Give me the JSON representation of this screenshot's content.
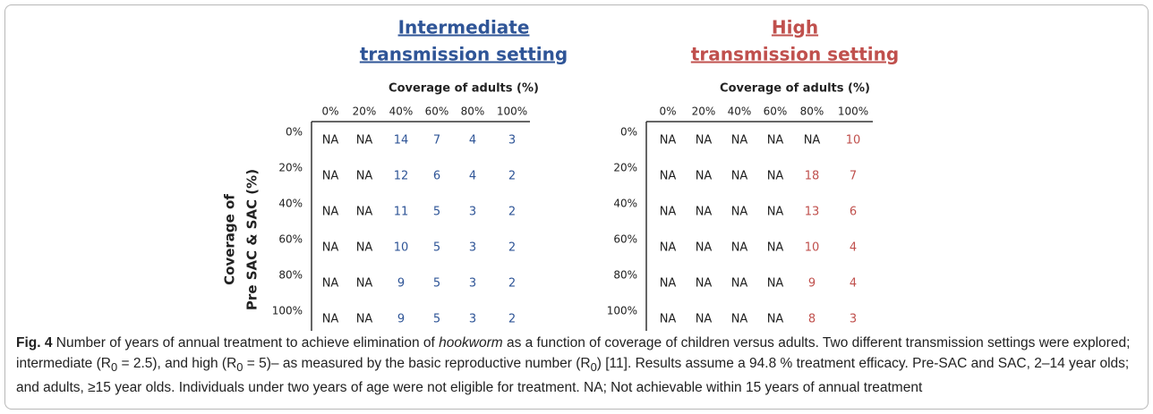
{
  "panels": [
    {
      "title": [
        "Intermediate",
        "transmission setting"
      ],
      "color": "#2f5597",
      "column_header": "Coverage of adults (%)",
      "columns": [
        "0%",
        "20%",
        "40%",
        "60%",
        "80%",
        "100%"
      ],
      "rows": [
        "0%",
        "20%",
        "40%",
        "60%",
        "80%",
        "100%"
      ],
      "cells": [
        [
          "NA",
          "NA",
          14,
          7,
          4,
          3
        ],
        [
          "NA",
          "NA",
          12,
          6,
          4,
          2
        ],
        [
          "NA",
          "NA",
          11,
          5,
          3,
          2
        ],
        [
          "NA",
          "NA",
          10,
          5,
          3,
          2
        ],
        [
          "NA",
          "NA",
          9,
          5,
          3,
          2
        ],
        [
          "NA",
          "NA",
          9,
          5,
          3,
          2
        ]
      ]
    },
    {
      "title": [
        "High",
        "transmission setting"
      ],
      "color": "#c0504d",
      "column_header": "Coverage of adults (%)",
      "columns": [
        "0%",
        "20%",
        "40%",
        "60%",
        "80%",
        "100%"
      ],
      "rows": [
        "0%",
        "20%",
        "40%",
        "60%",
        "80%",
        "100%"
      ],
      "cells": [
        [
          "NA",
          "NA",
          "NA",
          "NA",
          "NA",
          10
        ],
        [
          "NA",
          "NA",
          "NA",
          "NA",
          18,
          7
        ],
        [
          "NA",
          "NA",
          "NA",
          "NA",
          13,
          6
        ],
        [
          "NA",
          "NA",
          "NA",
          "NA",
          10,
          4
        ],
        [
          "NA",
          "NA",
          "NA",
          "NA",
          9,
          4
        ],
        [
          "NA",
          "NA",
          "NA",
          "NA",
          8,
          3
        ]
      ]
    }
  ],
  "row_axis_label": [
    "Coverage of",
    "Pre SAC & SAC (%)"
  ],
  "caption": {
    "label": "Fig. 4",
    "parts": [
      " Number of years of annual treatment to achieve elimination of ",
      "hookworm",
      " as a function of coverage of children versus adults. Two different transmission settings were explored; intermediate (R",
      "0",
      " = 2.5), and high (R",
      "0",
      " = 5)– as measured by the basic reproductive number (R",
      "0",
      ") [11]. Results assume a 94.8 % treatment efficacy. Pre-SAC and SAC, 2–14 year olds; and adults, ≥15 year olds. Individuals under two years of age were not eligible for treatment. NA; Not achievable within 15 years of annual treatment"
    ]
  }
}
